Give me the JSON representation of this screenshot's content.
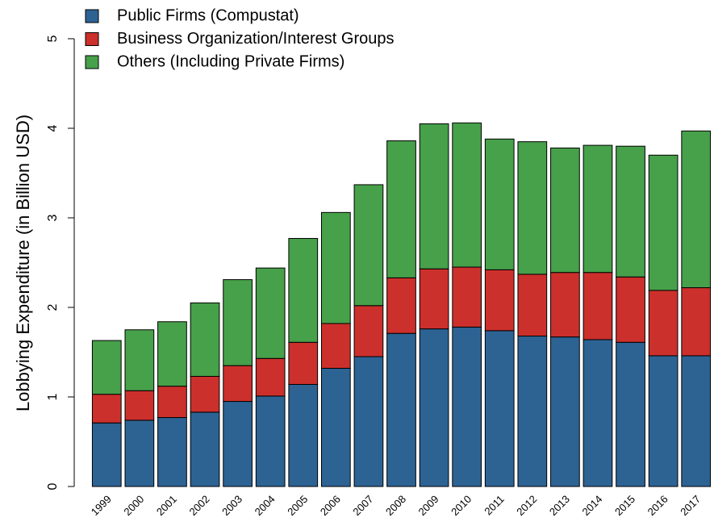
{
  "chart_data": {
    "type": "stacked_bar",
    "y_label": "Lobbying Expenditure (in Billion USD)",
    "categories": [
      "1999",
      "2000",
      "2001",
      "2002",
      "2003",
      "2004",
      "2005",
      "2006",
      "2007",
      "2008",
      "2009",
      "2010",
      "2011",
      "2012",
      "2013",
      "2014",
      "2015",
      "2016",
      "2017"
    ],
    "series": [
      {
        "name": "Public Firms (Compustat)",
        "color": "#2c6393",
        "values": [
          0.71,
          0.74,
          0.77,
          0.83,
          0.95,
          1.01,
          1.14,
          1.32,
          1.45,
          1.71,
          1.76,
          1.78,
          1.74,
          1.68,
          1.67,
          1.64,
          1.61,
          1.46,
          1.46
        ]
      },
      {
        "name": "Business Organization/Interest Groups",
        "color": "#cc302c",
        "values": [
          0.32,
          0.33,
          0.35,
          0.4,
          0.4,
          0.42,
          0.47,
          0.5,
          0.57,
          0.62,
          0.67,
          0.67,
          0.68,
          0.69,
          0.72,
          0.75,
          0.73,
          0.73,
          0.76
        ]
      },
      {
        "name": "Others (Including Private Firms)",
        "color": "#47a04a",
        "values": [
          0.6,
          0.68,
          0.72,
          0.82,
          0.96,
          1.01,
          1.16,
          1.24,
          1.35,
          1.53,
          1.62,
          1.61,
          1.46,
          1.48,
          1.39,
          1.42,
          1.46,
          1.51,
          1.75
        ]
      }
    ],
    "ylim": [
      0,
      5
    ],
    "yticks": [
      0,
      1,
      2,
      3,
      4,
      5
    ],
    "legend": "top-left"
  }
}
